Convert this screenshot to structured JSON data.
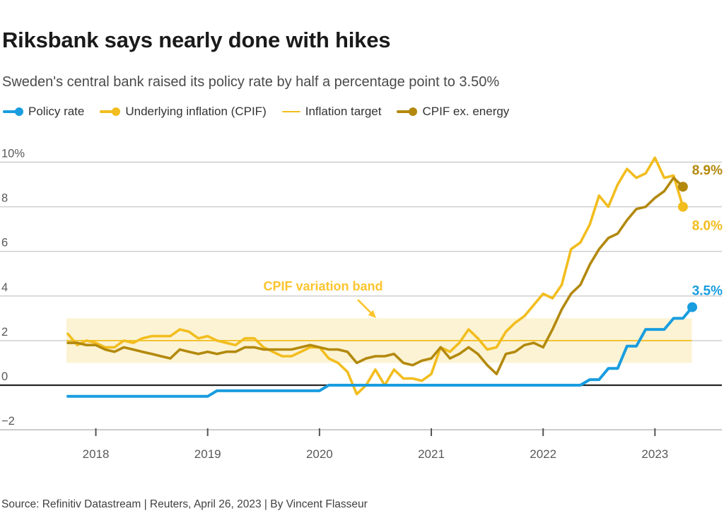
{
  "header": {
    "title": "Riksbank says nearly done with hikes",
    "subtitle": "Sweden's central bank raised its policy rate by half a percentage point to 3.50%"
  },
  "footer": {
    "source": "Source: Refinitiv Datastream | Reuters, April 26, 2023 | By Vincent Flasseur"
  },
  "colors": {
    "policy_blue": "#199DDF",
    "cpif_yellow": "#F2BD1E",
    "cpif_ex_energy_gold": "#B3890D",
    "band_fill": "#FCF3D4",
    "annotation_yellow": "#FCC42E",
    "grid_gray": "#CCCCCC",
    "zero_line": "#262626",
    "axis_gray": "#B3B3B3",
    "tick_label_gray": "#595959"
  },
  "chart_data": {
    "type": "line",
    "unit": "%",
    "x_monthly_plot_start": "2017-10",
    "x_ticks": [
      "2018",
      "2019",
      "2020",
      "2021",
      "2022",
      "2023"
    ],
    "y_ticks": [
      {
        "label": "10%",
        "value": 10
      },
      {
        "label": "8",
        "value": 8
      },
      {
        "label": "6",
        "value": 6
      },
      {
        "label": "4",
        "value": 4
      },
      {
        "label": "2",
        "value": 2
      },
      {
        "label": "0",
        "value": 0
      },
      {
        "label": "−2",
        "value": -2
      }
    ],
    "ylim": [
      -2,
      10.6
    ],
    "grid": true,
    "band": {
      "from": 1,
      "to": 3,
      "color": "#FCF3D4"
    },
    "annotation": {
      "text": "CPIF variation band",
      "color": "#FCC42E"
    },
    "target_line": {
      "name": "Inflation target",
      "value": 2,
      "color": "#F2BD1E"
    },
    "series": [
      {
        "name": "Policy rate",
        "color": "#199DDF",
        "end_label": "3.5%",
        "values": [
          -0.5,
          -0.5,
          -0.5,
          -0.5,
          -0.5,
          -0.5,
          -0.5,
          -0.5,
          -0.5,
          -0.5,
          -0.5,
          -0.5,
          -0.5,
          -0.5,
          -0.5,
          -0.5,
          -0.25,
          -0.25,
          -0.25,
          -0.25,
          -0.25,
          -0.25,
          -0.25,
          -0.25,
          -0.25,
          -0.25,
          -0.25,
          -0.25,
          0,
          0,
          0,
          0,
          0,
          0,
          0,
          0,
          0,
          0,
          0,
          0,
          0,
          0,
          0,
          0,
          0,
          0,
          0,
          0,
          0,
          0,
          0,
          0,
          0,
          0,
          0,
          0,
          0.25,
          0.25,
          0.75,
          0.75,
          1.75,
          1.75,
          2.5,
          2.5,
          2.5,
          3.0,
          3.0,
          3.5
        ]
      },
      {
        "name": "Underlying inflation (CPIF)",
        "color": "#F2BD1E",
        "end_label": "8.0%",
        "values": [
          2.3,
          1.8,
          2.0,
          1.9,
          1.7,
          1.7,
          2.0,
          1.9,
          2.1,
          2.2,
          2.2,
          2.2,
          2.5,
          2.4,
          2.1,
          2.2,
          2.0,
          1.9,
          1.8,
          2.1,
          2.1,
          1.7,
          1.5,
          1.3,
          1.3,
          1.5,
          1.7,
          1.7,
          1.2,
          1.0,
          0.6,
          -0.4,
          0.0,
          0.7,
          0.0,
          0.7,
          0.3,
          0.3,
          0.2,
          0.5,
          1.7,
          1.5,
          1.9,
          2.5,
          2.1,
          1.6,
          1.7,
          2.4,
          2.8,
          3.1,
          3.6,
          4.1,
          3.9,
          4.5,
          6.1,
          6.4,
          7.2,
          8.5,
          8.0,
          9.0,
          9.7,
          9.3,
          9.5,
          10.2,
          9.3,
          9.4,
          8.0
        ]
      },
      {
        "name": "CPIF ex. energy",
        "color": "#B3890D",
        "end_label": "8.9%",
        "values": [
          1.9,
          1.9,
          1.8,
          1.8,
          1.6,
          1.5,
          1.7,
          1.6,
          1.5,
          1.4,
          1.3,
          1.2,
          1.6,
          1.5,
          1.4,
          1.5,
          1.4,
          1.5,
          1.5,
          1.7,
          1.7,
          1.6,
          1.6,
          1.6,
          1.6,
          1.7,
          1.8,
          1.7,
          1.6,
          1.6,
          1.5,
          1.0,
          1.2,
          1.3,
          1.3,
          1.4,
          1.0,
          0.9,
          1.1,
          1.2,
          1.7,
          1.2,
          1.4,
          1.7,
          1.4,
          0.9,
          0.5,
          1.4,
          1.5,
          1.8,
          1.9,
          1.7,
          2.5,
          3.4,
          4.1,
          4.5,
          5.4,
          6.1,
          6.6,
          6.8,
          7.4,
          7.9,
          8.0,
          8.4,
          8.7,
          9.3,
          8.9
        ]
      }
    ]
  }
}
